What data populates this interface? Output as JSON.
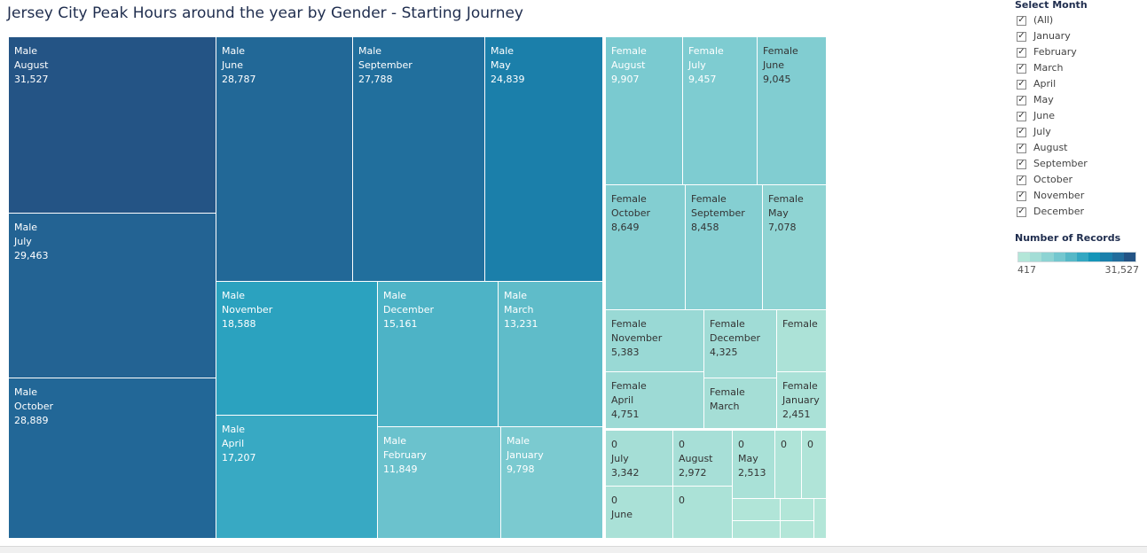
{
  "title": "Jersey City Peak Hours around the year by Gender - Starting Journey",
  "filter": {
    "header": "Select Month",
    "options": [
      "(All)",
      "January",
      "February",
      "March",
      "April",
      "May",
      "June",
      "July",
      "August",
      "September",
      "October",
      "November",
      "December"
    ],
    "checkmark": "✓"
  },
  "legend": {
    "header": "Number of Records",
    "min_label": "417",
    "max_label": "31,527",
    "colors": [
      "#b3e6d8",
      "#a3ddd6",
      "#8dd3d3",
      "#74c7cf",
      "#56b8c7",
      "#33a7c2",
      "#1595b8",
      "#1b80ab",
      "#226d9c",
      "#245485"
    ]
  },
  "chart_data": {
    "type": "treemap",
    "title": "Jersey City Peak Hours around the year by Gender - Starting Journey",
    "measure": "Number of Records",
    "color_range": [
      417,
      31527
    ],
    "groups": [
      {
        "name": "Male",
        "cells": [
          {
            "id": "male-august",
            "lines": [
              "Male",
              "August",
              "31,527"
            ],
            "value": 31527
          },
          {
            "id": "male-july",
            "lines": [
              "Male",
              "July",
              "29,463"
            ],
            "value": 29463
          },
          {
            "id": "male-october",
            "lines": [
              "Male",
              "October",
              "28,889"
            ],
            "value": 28889
          },
          {
            "id": "male-june",
            "lines": [
              "Male",
              "June",
              "28,787"
            ],
            "value": 28787
          },
          {
            "id": "male-september",
            "lines": [
              "Male",
              "September",
              "27,788"
            ],
            "value": 27788
          },
          {
            "id": "male-may",
            "lines": [
              "Male",
              "May",
              "24,839"
            ],
            "value": 24839
          },
          {
            "id": "male-november",
            "lines": [
              "Male",
              "November",
              "18,588"
            ],
            "value": 18588
          },
          {
            "id": "male-april",
            "lines": [
              "Male",
              "April",
              "17,207"
            ],
            "value": 17207
          },
          {
            "id": "male-december",
            "lines": [
              "Male",
              "December",
              "15,161"
            ],
            "value": 15161
          },
          {
            "id": "male-march",
            "lines": [
              "Male",
              "March",
              "13,231"
            ],
            "value": 13231
          },
          {
            "id": "male-february",
            "lines": [
              "Male",
              "February",
              "11,849"
            ],
            "value": 11849
          },
          {
            "id": "male-january",
            "lines": [
              "Male",
              "January",
              "9,798"
            ],
            "value": 9798
          }
        ]
      },
      {
        "name": "Female",
        "cells": [
          {
            "id": "female-august",
            "lines": [
              "Female",
              "August",
              "9,907"
            ],
            "value": 9907
          },
          {
            "id": "female-july",
            "lines": [
              "Female",
              "July",
              "9,457"
            ],
            "value": 9457
          },
          {
            "id": "female-june",
            "lines": [
              "Female",
              "June",
              "9,045"
            ],
            "value": 9045
          },
          {
            "id": "female-october",
            "lines": [
              "Female",
              "October",
              "8,649"
            ],
            "value": 8649
          },
          {
            "id": "female-september",
            "lines": [
              "Female",
              "September",
              "8,458"
            ],
            "value": 8458
          },
          {
            "id": "female-may",
            "lines": [
              "Female",
              "May",
              "7,078"
            ],
            "value": 7078
          },
          {
            "id": "female-november",
            "lines": [
              "Female",
              "November",
              "5,383"
            ],
            "value": 5383
          },
          {
            "id": "female-december",
            "lines": [
              "Female",
              "December",
              "4,325"
            ],
            "value": 4325
          },
          {
            "id": "female-small",
            "lines": [
              "Female"
            ],
            "value": 1900
          },
          {
            "id": "female-april",
            "lines": [
              "Female",
              "April",
              "4,751"
            ],
            "value": 4751
          },
          {
            "id": "female-march",
            "lines": [
              "Female",
              "March"
            ],
            "value": 3500
          },
          {
            "id": "female-january",
            "lines": [
              "Female",
              "January",
              "2,451"
            ],
            "value": 2451
          }
        ]
      },
      {
        "name": "0",
        "cells": [
          {
            "id": "zero-july",
            "lines": [
              "0",
              "July",
              "3,342"
            ],
            "value": 3342
          },
          {
            "id": "zero-august",
            "lines": [
              "0",
              "August",
              "2,972"
            ],
            "value": 2972
          },
          {
            "id": "zero-may",
            "lines": [
              "0",
              "May",
              "2,513"
            ],
            "value": 2513
          },
          {
            "id": "zero-a",
            "lines": [
              "0"
            ],
            "value": 1200
          },
          {
            "id": "zero-b",
            "lines": [
              "0"
            ],
            "value": 1100
          },
          {
            "id": "zero-june",
            "lines": [
              "0",
              "June"
            ],
            "value": 2300
          },
          {
            "id": "zero-c",
            "lines": [
              "0"
            ],
            "value": 2100
          },
          {
            "id": "zero-s1",
            "lines": [],
            "value": 900
          },
          {
            "id": "zero-s2",
            "lines": [],
            "value": 600
          },
          {
            "id": "zero-s3",
            "lines": [],
            "value": 417
          },
          {
            "id": "zero-s4",
            "lines": [],
            "value": 800
          },
          {
            "id": "zero-s5",
            "lines": [],
            "value": 500
          },
          {
            "id": "zero-s6",
            "lines": [],
            "value": 417
          }
        ]
      }
    ]
  }
}
